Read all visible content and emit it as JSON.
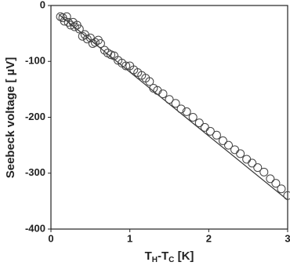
{
  "chart_data": {
    "type": "scatter",
    "x_label": [
      "T",
      "H",
      "-T",
      "C",
      " [K]"
    ],
    "y_label": "Seebeck voltage [ µV]",
    "xlim": [
      0,
      3
    ],
    "xticks": [
      0,
      1,
      2,
      3
    ],
    "ylim": [
      -400,
      0
    ],
    "yticks": [
      0,
      -100,
      -200,
      -300,
      -400
    ],
    "color": "#444444",
    "x": [
      0.12,
      0.15,
      0.17,
      0.2,
      0.22,
      0.25,
      0.28,
      0.3,
      0.33,
      0.36,
      0.4,
      0.43,
      0.46,
      0.5,
      0.53,
      0.56,
      0.6,
      0.63,
      0.68,
      0.72,
      0.76,
      0.8,
      0.85,
      0.9,
      0.95,
      1.0,
      1.05,
      1.1,
      1.15,
      1.2,
      1.25,
      1.3,
      1.35,
      1.42,
      1.5,
      1.58,
      1.65,
      1.72,
      1.8,
      1.88,
      1.95,
      2.02,
      2.1,
      2.18,
      2.25,
      2.33,
      2.4,
      2.48,
      2.55,
      2.62,
      2.7,
      2.78,
      2.85,
      2.92,
      3.0
    ],
    "values": [
      -20,
      -22,
      -28,
      -20,
      -30,
      -35,
      -30,
      -38,
      -35,
      -42,
      -55,
      -52,
      -60,
      -58,
      -68,
      -66,
      -62,
      -68,
      -80,
      -85,
      -88,
      -90,
      -98,
      -103,
      -108,
      -108,
      -115,
      -120,
      -125,
      -130,
      -136,
      -148,
      -152,
      -158,
      -168,
      -175,
      -185,
      -190,
      -200,
      -210,
      -218,
      -225,
      -232,
      -242,
      -250,
      -258,
      -265,
      -275,
      -282,
      -290,
      -298,
      -310,
      -318,
      -328,
      -340
    ],
    "fit_line": {
      "x": [
        0.1,
        3
      ],
      "values": [
        -16,
        -348
      ]
    }
  }
}
